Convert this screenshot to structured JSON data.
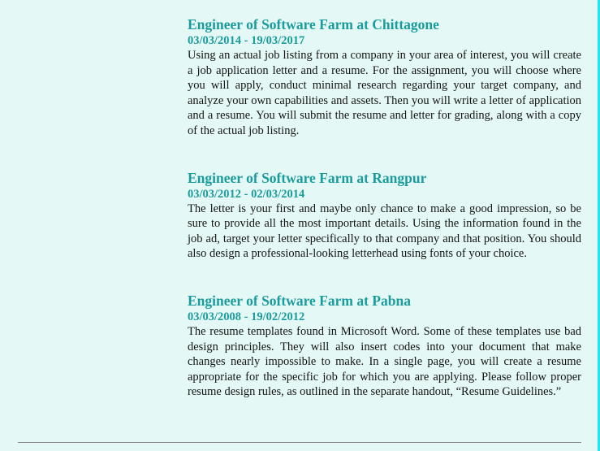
{
  "jobs": [
    {
      "title": "Engineer of Software Farm at Chittagone",
      "dates": "03/03/2014 - 19/03/2017",
      "description": "Using an actual job listing from a company in your area of interest, you will create a job application letter and a resume. For the assignment, you will choose where you will apply, conduct minimal research regarding your target company, and analyze your own capabilities and assets. Then you will write a letter of application and a resume. You will submit the resume and letter for grading, along with a copy of the actual job listing."
    },
    {
      "title": "Engineer of Software Farm at Rangpur",
      "dates": "03/03/2012 - 02/03/2014",
      "description": "The letter is your first and maybe only chance to make a good impression, so be sure to provide all the most important details. Using the information found in the job ad, target your letter specifically to that company and that position. You should also design a professional-looking letterhead using fonts of your choice."
    },
    {
      "title": "Engineer of Software Farm at Pabna",
      "dates": "03/03/2008 - 19/02/2012",
      "description": "The resume templates found in Microsoft Word. Some of these templates use bad design principles. They will also insert codes into your document that make changes nearly impossible to make. In a single page, you will create a resume appropriate for the specific job for which you are applying. Please follow proper resume design rules, as outlined in the separate handout, “Resume Guidelines.”"
    }
  ],
  "colors": {
    "background": "#e4f8f6",
    "accent": "#1a9c9c",
    "border": "#21e6ee",
    "text": "#141414"
  }
}
